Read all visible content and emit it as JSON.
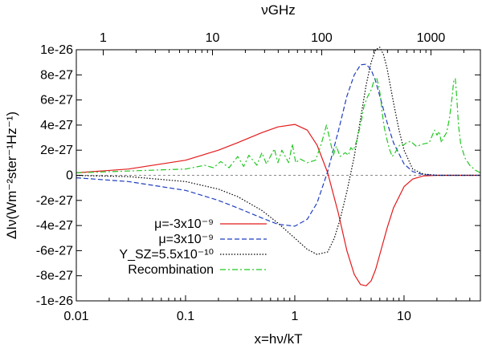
{
  "chart_data": {
    "type": "line",
    "title": "",
    "xlabel": "x=hν/kT",
    "ylabel": "ΔIν(Wm⁻²ster⁻¹Hz⁻¹)",
    "x2label": "νGHz",
    "xscale": "log",
    "xlim": [
      0.01,
      50
    ],
    "ylim": [
      -1e-26,
      1e-26
    ],
    "xticks": [
      {
        "v": 0.01,
        "label": "0.01"
      },
      {
        "v": 0.1,
        "label": "0.1"
      },
      {
        "v": 1,
        "label": "1"
      },
      {
        "v": 10,
        "label": "10"
      }
    ],
    "x2ticks": [
      {
        "x": 0.01763,
        "label": "1"
      },
      {
        "x": 0.1763,
        "label": "10"
      },
      {
        "x": 1.763,
        "label": "100"
      },
      {
        "x": 17.63,
        "label": "1000"
      }
    ],
    "yticks": [
      {
        "v": 1e-26,
        "label": "1e-26"
      },
      {
        "v": 8e-27,
        "label": "8e-27"
      },
      {
        "v": 6e-27,
        "label": "6e-27"
      },
      {
        "v": 4e-27,
        "label": "4e-27"
      },
      {
        "v": 2e-27,
        "label": "2e-27"
      },
      {
        "v": 0,
        "label": "0"
      },
      {
        "v": -2e-27,
        "label": "-2e-27"
      },
      {
        "v": -4e-27,
        "label": "-4e-27"
      },
      {
        "v": -6e-27,
        "label": "-6e-27"
      },
      {
        "v": -8e-27,
        "label": "-8e-27"
      },
      {
        "v": -1e-26,
        "label": "-1e-26"
      }
    ],
    "legend_position": "bottom-left",
    "series": [
      {
        "name": "μ=-3x10⁻⁹",
        "color": "#e41a1c",
        "dash": "solid",
        "x": [
          0.01,
          0.03,
          0.1,
          0.2,
          0.3,
          0.5,
          0.7,
          1.0,
          1.3,
          1.6,
          2.0,
          2.5,
          3.0,
          3.5,
          4.0,
          4.5,
          5.0,
          5.5,
          6.0,
          7.0,
          8.0,
          10,
          12,
          15,
          20,
          30,
          50
        ],
        "y": [
          2e-28,
          5e-28,
          1.2e-27,
          2e-27,
          2.6e-27,
          3.4e-27,
          3.85e-27,
          4.05e-27,
          3.6e-27,
          2.4e-27,
          2e-28,
          -3e-27,
          -6e-27,
          -7.9e-27,
          -8.7e-27,
          -8.8e-27,
          -8.4e-27,
          -7.5e-27,
          -6.3e-27,
          -4.2e-27,
          -2.6e-27,
          -9e-28,
          -3e-28,
          -5e-29,
          0,
          0,
          0
        ]
      },
      {
        "name": "μ=3x10⁻⁹",
        "color": "#1f3fbf",
        "dash": "dashed",
        "x": [
          0.01,
          0.03,
          0.1,
          0.2,
          0.3,
          0.5,
          0.7,
          1.0,
          1.3,
          1.6,
          2.0,
          2.5,
          3.0,
          3.5,
          4.0,
          4.5,
          5.0,
          5.5,
          6.0,
          7.0,
          8.0,
          10,
          12,
          15,
          20,
          30,
          50
        ],
        "y": [
          -2e-28,
          -5e-28,
          -1.2e-27,
          -2e-27,
          -2.6e-27,
          -3.4e-27,
          -3.9e-27,
          -4.05e-27,
          -3.5e-27,
          -2.2e-27,
          3e-28,
          3.5e-27,
          6.3e-27,
          8e-27,
          8.8e-27,
          8.85e-27,
          8.4e-27,
          7.5e-27,
          6.3e-27,
          4.2e-27,
          2.6e-27,
          9e-28,
          3e-28,
          5e-29,
          0,
          0,
          0
        ]
      },
      {
        "name": "Y_SZ=5.5x10⁻¹⁰",
        "color": "#000000",
        "dash": "dotted",
        "x": [
          0.01,
          0.03,
          0.1,
          0.2,
          0.3,
          0.5,
          0.7,
          1.0,
          1.3,
          1.6,
          2.0,
          2.3,
          2.6,
          3.0,
          3.5,
          4.0,
          4.5,
          5.0,
          5.5,
          6.0,
          6.5,
          7.0,
          7.5,
          8.0,
          9.0,
          10,
          12,
          15,
          20,
          50
        ],
        "y": [
          -1e-29,
          -1e-28,
          -5e-28,
          -1.1e-27,
          -1.7e-27,
          -2.8e-27,
          -3.8e-27,
          -5e-27,
          -5.9e-27,
          -6.3e-27,
          -6.1e-27,
          -5e-27,
          -3.5e-27,
          -1.3e-27,
          1.5e-27,
          4.5e-27,
          7.2e-27,
          9e-27,
          1e-26,
          1.02e-26,
          9.6e-27,
          8.5e-27,
          7.1e-27,
          5.8e-27,
          3.6e-27,
          2e-27,
          5e-28,
          1e-28,
          0,
          0
        ]
      },
      {
        "name": "Recombination",
        "color": "#22c722",
        "dash": "dashdot",
        "x": [
          0.01,
          0.1,
          0.15,
          0.18,
          0.21,
          0.25,
          0.3,
          0.34,
          0.38,
          0.45,
          0.5,
          0.55,
          0.65,
          0.7,
          0.76,
          0.88,
          0.95,
          1.02,
          1.12,
          1.3,
          1.55,
          1.75,
          1.95,
          2.1,
          2.25,
          2.4,
          2.6,
          2.9,
          3.1,
          3.25,
          3.45,
          3.7,
          4.0,
          4.3,
          4.6,
          5.0,
          5.3,
          5.6,
          5.9,
          6.1,
          6.3,
          6.6,
          7.0,
          7.4,
          7.8,
          8.3,
          8.9,
          9.4,
          9.9,
          10.5,
          11.5,
          13,
          15,
          17,
          19,
          20,
          21,
          22,
          23,
          24.5,
          26,
          27.5,
          28.5,
          29.5,
          30.5,
          31.5,
          33,
          36,
          40,
          45,
          50
        ],
        "y": [
          2e-28,
          5e-28,
          8e-28,
          6e-28,
          1.1e-27,
          6e-28,
          1.5e-27,
          7e-28,
          1.6e-27,
          8e-28,
          1.8e-27,
          9e-28,
          2.1e-27,
          1e-27,
          2e-27,
          1e-27,
          2.5e-27,
          1e-27,
          1.3e-27,
          1e-27,
          1.2e-27,
          2.5e-27,
          4e-27,
          2.8e-27,
          1.6e-27,
          2.3e-27,
          1.5e-27,
          1.8e-27,
          1.6e-27,
          2.2e-27,
          2e-27,
          2.8e-27,
          4e-27,
          5.5e-27,
          6.2e-27,
          6.8e-27,
          7.5e-27,
          7.8e-27,
          7e-27,
          6.2e-27,
          5e-27,
          3.8e-27,
          2.8e-27,
          2e-27,
          1.5e-27,
          1.8e-27,
          2.3e-27,
          2.5e-27,
          2.4e-27,
          2.6e-27,
          2.7e-27,
          2.3e-27,
          2.5e-27,
          2.6e-27,
          3.6e-27,
          3.2e-27,
          3.5e-27,
          2.6e-27,
          3e-27,
          3.4e-27,
          4.5e-27,
          6.2e-27,
          7.5e-27,
          7.7e-27,
          6e-27,
          4e-27,
          2.5e-27,
          1.4e-27,
          8e-28,
          4e-28,
          2e-28
        ]
      }
    ],
    "reference_line": {
      "y": 0,
      "color": "#888888",
      "style": "dashed"
    }
  }
}
